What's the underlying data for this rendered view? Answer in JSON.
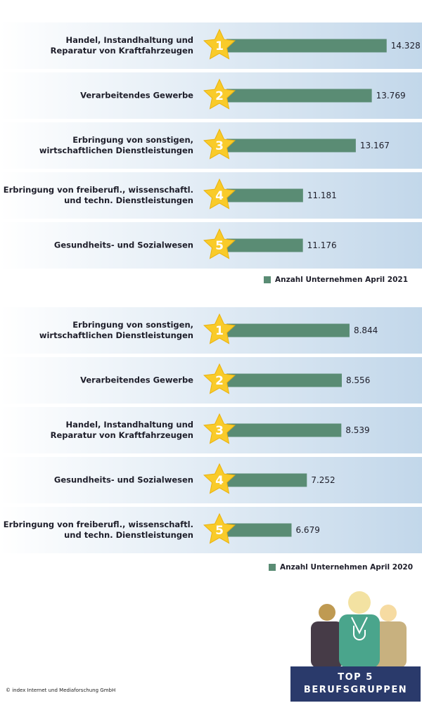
{
  "chart_data": [
    {
      "type": "bar",
      "categories": [
        "Handel, Instandhaltung und\nReparatur von Kraftfahrzeugen",
        "Verarbeitendes Gewerbe",
        "Erbringung von sonstigen,\nwirtschaftlichen Dienstleistungen",
        "Erbringung von freiberufl., wissenschaftl.\nund techn. Dienstleistungen",
        "Gesundheits- und Sozialwesen"
      ],
      "ranks": [
        "1",
        "2",
        "3",
        "4",
        "5"
      ],
      "series": [
        {
          "name": "Anzahl Unternehmen April 2021",
          "color": "#5a8c74",
          "values": [
            14328,
            13769,
            13167,
            11181,
            11176
          ],
          "value_labels": [
            "14.328",
            "13.769",
            "13.167",
            "11.181",
            "11.176"
          ]
        }
      ],
      "xlim": [
        8300,
        14600
      ]
    },
    {
      "type": "bar",
      "categories": [
        "Erbringung von sonstigen,\nwirtschaftlichen Dienstleistungen",
        "Verarbeitendes Gewerbe",
        "Handel, Instandhaltung und\nReparatur von Kraftfahrzeugen",
        "Gesundheits- und Sozialwesen",
        "Erbringung von freiberufl., wissenschaftl.\nund techn. Dienstleistungen"
      ],
      "ranks": [
        "1",
        "2",
        "3",
        "4",
        "5"
      ],
      "series": [
        {
          "name": "Anzahl Unternehmen April 2020",
          "color": "#5a8c74",
          "values": [
            8844,
            8556,
            8539,
            7252,
            6679
          ],
          "value_labels": [
            "8.844",
            "8.556",
            "8.539",
            "7.252",
            "6.679"
          ]
        }
      ],
      "xlim": [
        4250,
        10500
      ]
    }
  ],
  "credit": "© index Internet und Mediaforschung GmbH",
  "badge": [
    "TOP 5",
    "BERUFSGRUPPEN"
  ]
}
